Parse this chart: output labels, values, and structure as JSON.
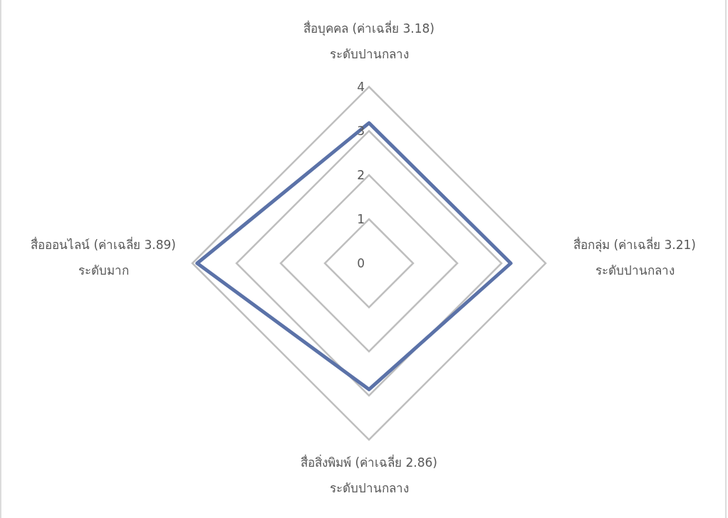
{
  "chart_data": {
    "type": "radar",
    "categories": [
      "สื่อบุคคล (ค่าเฉลี่ย 3.18)\nระดับปานกลาง",
      "สื่อกลุ่ม (ค่าเฉลี่ย 3.21)\nระดับปานกลาง",
      "สื่อสิ่งพิมพ์ (ค่าเฉลี่ย 2.86)\nระดับปานกลาง",
      "สื่อออนไลน์ (ค่าเฉลี่ย 3.89)\nระดับมาก"
    ],
    "series": [
      {
        "color": "#5b72a8",
        "values": [
          3.18,
          3.21,
          2.86,
          3.89
        ]
      }
    ],
    "ylim": [
      0,
      4
    ],
    "yticks": [
      0,
      1,
      2,
      3,
      4
    ],
    "grid": true
  }
}
